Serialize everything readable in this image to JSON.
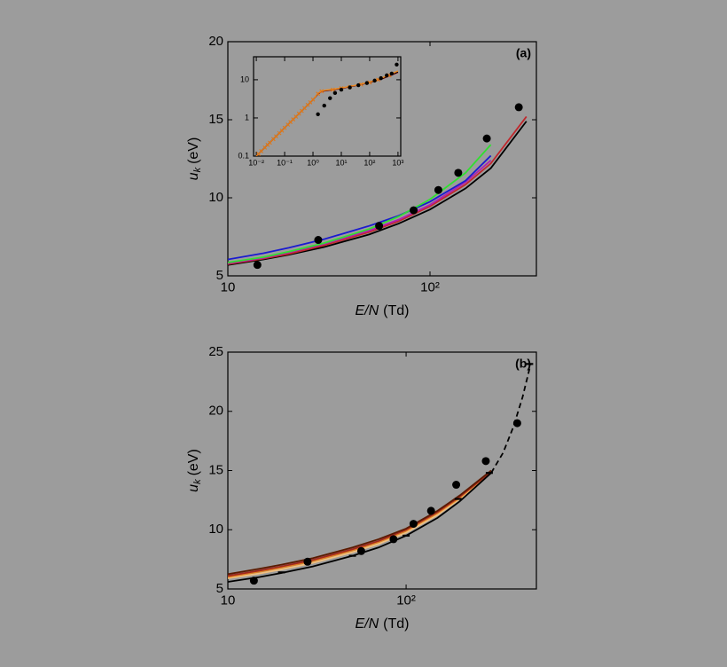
{
  "chart_data": [
    {
      "type": "line",
      "label": "(a)",
      "xlog": true,
      "ylog": false,
      "x_label": {
        "symbol": "E/N",
        "unit": "(Td)"
      },
      "y_label": {
        "symbol": "u",
        "subscript": "k",
        "unit": "(eV)"
      },
      "xlim": [
        10,
        336
      ],
      "ylim": [
        5,
        20
      ],
      "xticks": [
        10,
        {
          "value": 100,
          "label": "10²"
        }
      ],
      "yticks": [
        5,
        10,
        15,
        20
      ],
      "series": [
        {
          "color": "#000000",
          "style": "line",
          "x": [
            10,
            15,
            20,
            30,
            50,
            70,
            100,
            150,
            200,
            300
          ],
          "values": [
            5.7,
            6.05,
            6.35,
            6.85,
            7.65,
            8.35,
            9.25,
            10.6,
            11.9,
            14.9
          ]
        },
        {
          "color": "#c0282d",
          "style": "line",
          "x": [
            10,
            15,
            20,
            30,
            50,
            70,
            100,
            150,
            200,
            300
          ],
          "values": [
            5.75,
            6.1,
            6.4,
            6.95,
            7.8,
            8.5,
            9.45,
            10.85,
            12.2,
            15.2
          ]
        },
        {
          "color": "#b020b0",
          "style": "line",
          "x": [
            10,
            15,
            20,
            30,
            50,
            70,
            100,
            150,
            200,
            300
          ],
          "values": [
            5.8,
            6.15,
            6.5,
            7.05,
            7.9,
            8.6,
            9.55,
            11.0,
            12.4,
            null
          ]
        },
        {
          "color": "#1a1ad0",
          "style": "line",
          "x": [
            10,
            15,
            20,
            30,
            50,
            70,
            100,
            150,
            200,
            300
          ],
          "values": [
            6.05,
            6.45,
            6.8,
            7.35,
            8.2,
            8.85,
            9.75,
            11.1,
            12.7,
            null
          ]
        },
        {
          "color": "#30e030",
          "style": "line",
          "x": [
            10,
            15,
            20,
            30,
            50,
            70,
            100,
            150,
            200,
            300
          ],
          "values": [
            5.85,
            6.2,
            6.55,
            7.1,
            8.0,
            8.8,
            9.9,
            11.6,
            13.4,
            null
          ]
        },
        {
          "color": "#000000",
          "style": "circle",
          "x": [
            14,
            28,
            56,
            83,
            110,
            138,
            191,
            275
          ],
          "values": [
            5.7,
            7.3,
            8.2,
            9.2,
            10.5,
            11.6,
            13.8,
            15.8
          ]
        }
      ]
    },
    {
      "type": "line",
      "label": "(b)",
      "xlog": true,
      "ylog": false,
      "x_label": {
        "symbol": "E/N",
        "unit": "(Td)"
      },
      "y_label": {
        "symbol": "u",
        "subscript": "k",
        "unit": "(eV)"
      },
      "xlim": [
        10,
        538
      ],
      "ylim": [
        5,
        25
      ],
      "xticks": [
        10,
        {
          "value": 100,
          "label": "10²"
        }
      ],
      "yticks": [
        5,
        10,
        15,
        20,
        25
      ],
      "series": [
        {
          "color": "#f0c080",
          "style": "line",
          "x": [
            10,
            15,
            20,
            30,
            50,
            70,
            100,
            150,
            200,
            300
          ],
          "values": [
            5.9,
            6.3,
            6.65,
            7.2,
            8.1,
            8.8,
            9.75,
            11.25,
            12.6,
            14.8
          ]
        },
        {
          "color": "#e08020",
          "style": "line",
          "x": [
            10,
            15,
            20,
            30,
            50,
            70,
            100,
            150,
            200,
            300
          ],
          "values": [
            6.0,
            6.45,
            6.8,
            7.35,
            8.25,
            8.95,
            9.9,
            11.4,
            12.7,
            14.9
          ]
        },
        {
          "color": "#a0281e",
          "style": "line",
          "x": [
            10,
            15,
            20,
            30,
            50,
            70,
            100,
            150,
            200,
            300
          ],
          "values": [
            6.1,
            6.55,
            6.9,
            7.45,
            8.35,
            9.05,
            10.0,
            11.5,
            12.8,
            14.9
          ]
        },
        {
          "color": "#5a1a00",
          "style": "line",
          "x": [
            10,
            15,
            20,
            30,
            50,
            70,
            100,
            150,
            200,
            300
          ],
          "values": [
            6.25,
            6.7,
            7.05,
            7.6,
            8.5,
            9.2,
            10.1,
            11.6,
            12.9,
            15.0
          ]
        },
        {
          "color": "#000000",
          "style": "line",
          "x": [
            10,
            15,
            20,
            30,
            50,
            70,
            100,
            150,
            200,
            300
          ],
          "values": [
            5.6,
            6.0,
            6.35,
            6.9,
            7.8,
            8.5,
            9.5,
            11.0,
            12.4,
            14.8
          ]
        },
        {
          "color": "#000000",
          "style": "dashed",
          "x": [
            300,
            350,
            400,
            450,
            500
          ],
          "values": [
            14.8,
            16.5,
            18.7,
            21.2,
            24
          ]
        },
        {
          "color": "#000000",
          "style": "circle",
          "x": [
            14,
            28,
            56,
            85,
            110,
            138,
            191,
            280,
            420
          ],
          "values": [
            5.7,
            7.3,
            8.2,
            9.2,
            10.5,
            11.6,
            13.8,
            15.8,
            19
          ]
        },
        {
          "color": "#000000",
          "style": "dash",
          "x": [
            20,
            50,
            100,
            196,
            293,
            493
          ],
          "values": [
            6.4,
            7.8,
            9.5,
            12.6,
            14.8,
            24
          ]
        }
      ]
    },
    {
      "type": "line",
      "xlog": true,
      "ylog": true,
      "xlim": [
        0.008,
        1250
      ],
      "ylim": [
        0.1,
        40
      ],
      "xticks": [
        {
          "value": 0.01,
          "label": "10⁻²"
        },
        {
          "value": 0.1,
          "label": "10⁻¹"
        },
        {
          "value": 1,
          "label": "10⁰"
        },
        {
          "value": 10,
          "label": "10¹"
        },
        {
          "value": 100,
          "label": "10²"
        },
        {
          "value": 1000,
          "label": "10³"
        }
      ],
      "yticks": [
        0.1,
        1,
        10
      ],
      "series": [
        {
          "color": "#c0282d",
          "style": "line",
          "x": [
            0.01,
            0.1,
            1,
            1.5,
            2,
            3,
            5,
            10,
            30,
            100,
            300,
            1000
          ],
          "values": [
            0.1,
            0.55,
            3.0,
            4.2,
            4.9,
            5.2,
            5.4,
            5.9,
            6.9,
            8.4,
            10.8,
            15.5
          ]
        },
        {
          "color": "#000000",
          "style": "line",
          "x": [
            0.01,
            0.1,
            1,
            1.5,
            2,
            3,
            5,
            10,
            30,
            100,
            300,
            1000
          ],
          "values": [
            0.1,
            0.55,
            3.0,
            4.3,
            5.0,
            5.3,
            5.5,
            6.0,
            7.0,
            8.5,
            11,
            16
          ]
        },
        {
          "color": "#f08a20",
          "style": "line",
          "x": [
            0.01,
            0.1,
            1,
            1.5,
            2,
            3,
            5,
            10,
            30,
            100,
            300,
            1000
          ],
          "values": [
            0.1,
            0.55,
            3.0,
            4.4,
            5.1,
            5.4,
            5.6,
            6.1,
            7.1,
            8.6,
            11.5,
            17
          ]
        },
        {
          "color": "#e07818",
          "style": "cross",
          "x": [
            0.012,
            0.015,
            0.02,
            0.025,
            0.03,
            0.04,
            0.05,
            0.065,
            0.08,
            0.1,
            0.13,
            0.16,
            0.2,
            0.25,
            0.32,
            0.4,
            0.5,
            0.65,
            0.8,
            1.0,
            1.5,
            2,
            5,
            10,
            20,
            50,
            100,
            200,
            500
          ],
          "values": [
            0.114,
            0.135,
            0.167,
            0.197,
            0.225,
            0.279,
            0.329,
            0.399,
            0.466,
            0.55,
            0.668,
            0.779,
            0.918,
            1.08,
            1.3,
            1.53,
            1.81,
            2.2,
            2.56,
            3.02,
            4.3,
            5.0,
            5.5,
            6.0,
            6.5,
            7.5,
            8.5,
            10,
            13
          ]
        },
        {
          "color": "#000000",
          "style": "circle",
          "x": [
            1.5,
            2.5,
            4,
            6,
            10,
            20,
            40,
            80,
            150,
            250,
            400,
            600,
            900
          ],
          "values": [
            1.25,
            2.1,
            3.3,
            4.5,
            5.5,
            6.3,
            7.2,
            8.2,
            9.5,
            11,
            13,
            14.5,
            25
          ]
        }
      ]
    }
  ]
}
